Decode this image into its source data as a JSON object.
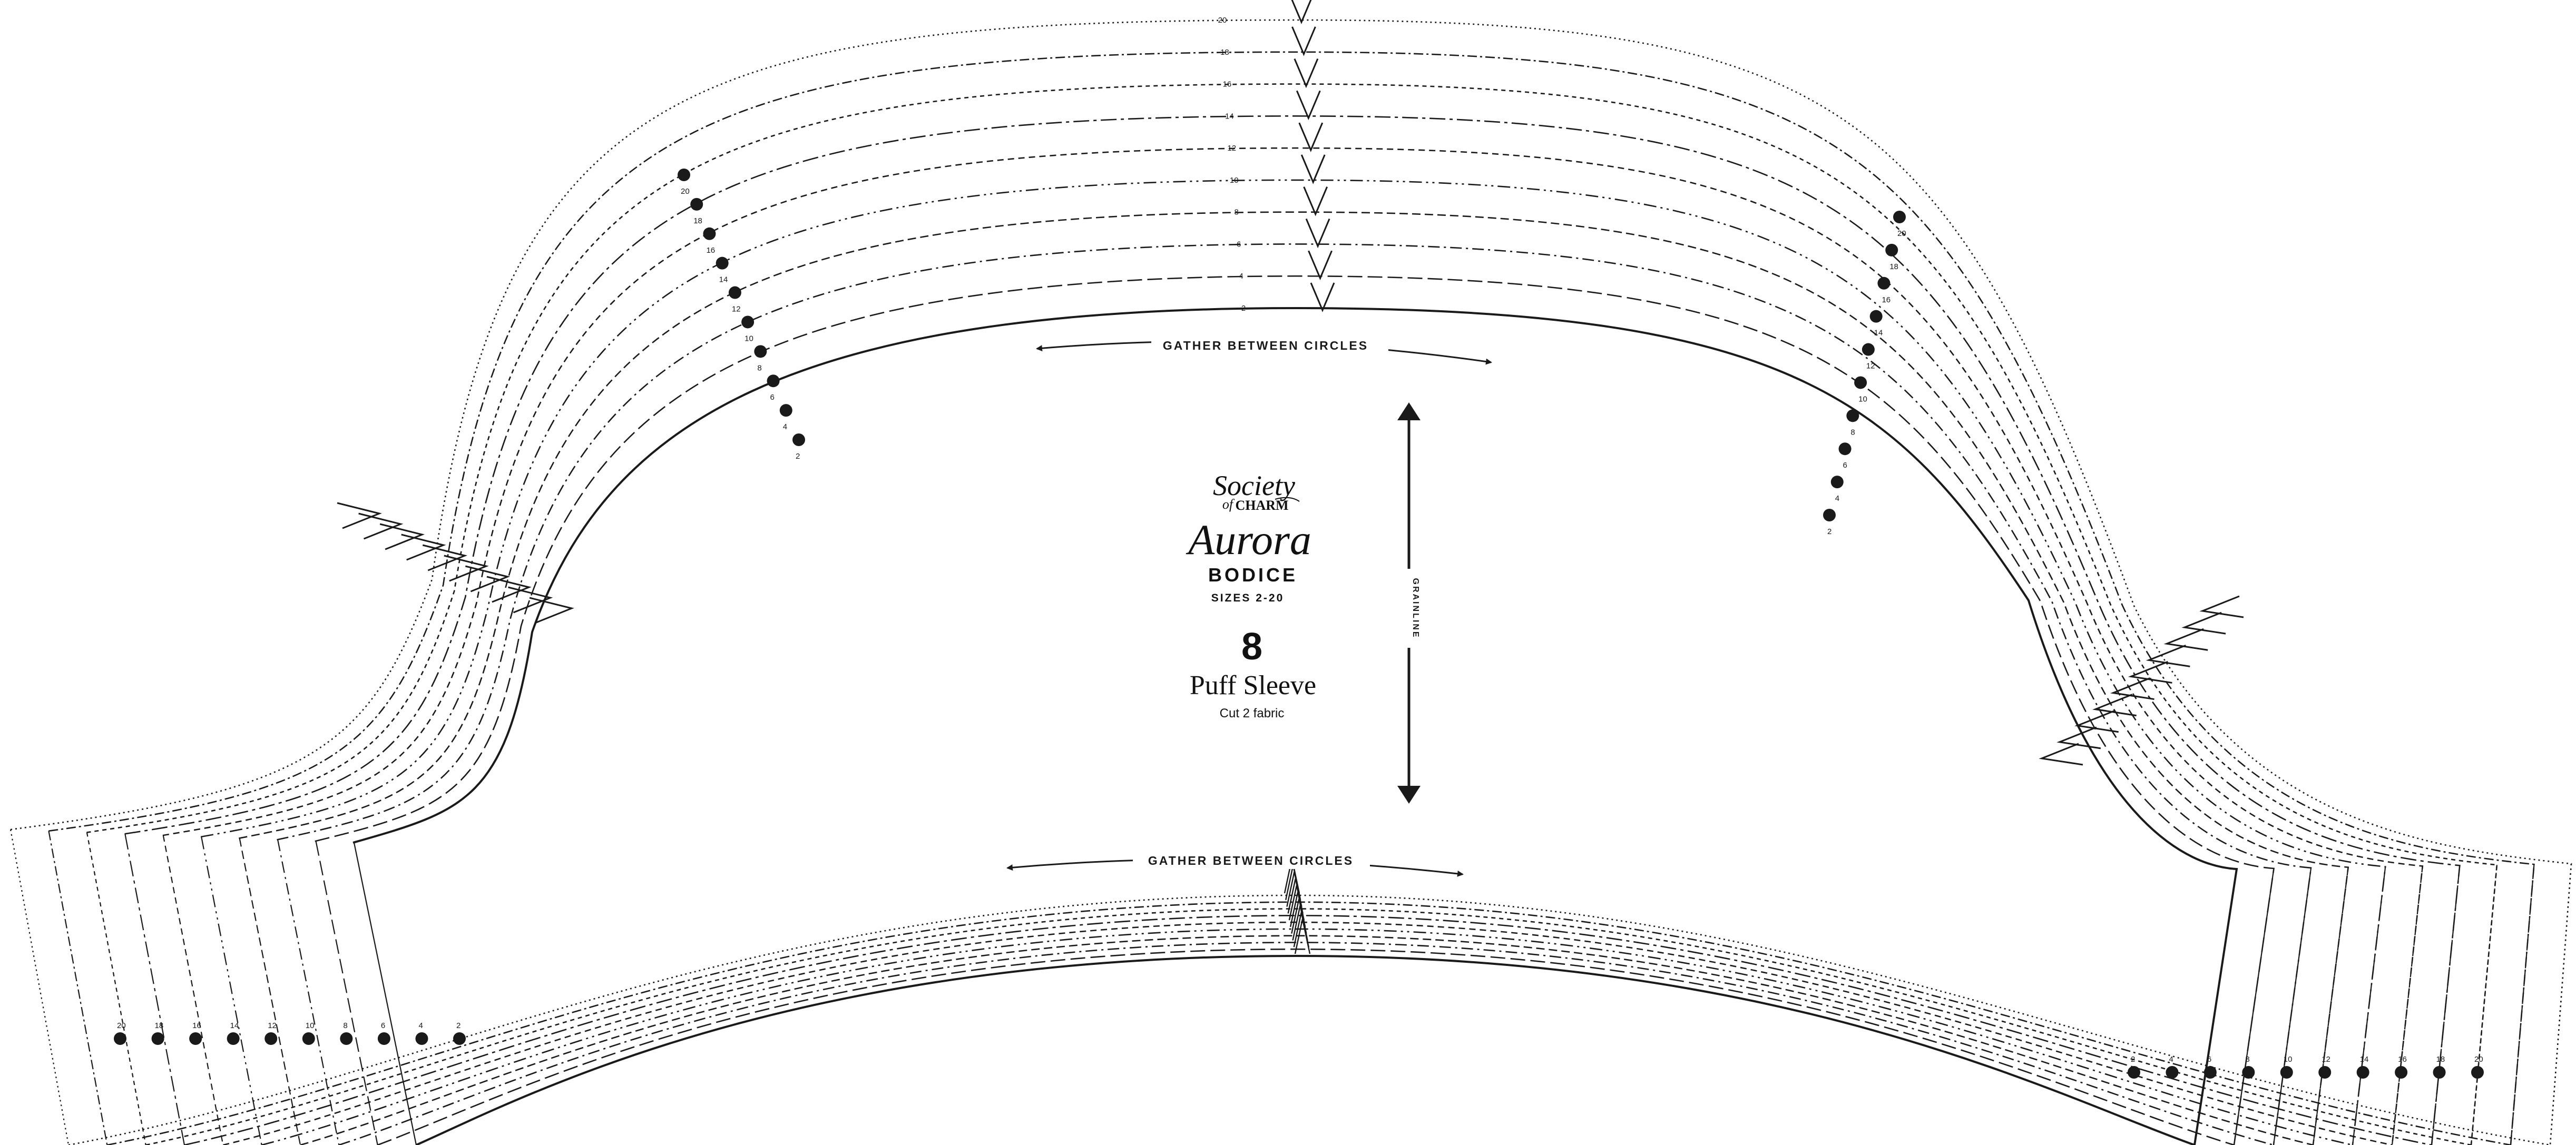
{
  "brand": {
    "line1": "Society",
    "line2": "CHARM",
    "connector": "of"
  },
  "pattern": {
    "name": "Aurora",
    "garment": "BODICE",
    "size_range": "SIZES 2-20",
    "piece_number": "8",
    "piece_name": "Puff Sleeve",
    "cut_instruction": "Cut 2 fabric"
  },
  "annotations": {
    "gather_top": "GATHER BETWEEN CIRCLES",
    "gather_bottom": "GATHER BETWEEN CIRCLES",
    "grainline": "GRAINLINE"
  },
  "sizes": [
    "2",
    "4",
    "6",
    "8",
    "10",
    "12",
    "14",
    "16",
    "18",
    "20"
  ],
  "colors": {
    "ink": "#1a1a1a",
    "paper": "#ffffff"
  }
}
